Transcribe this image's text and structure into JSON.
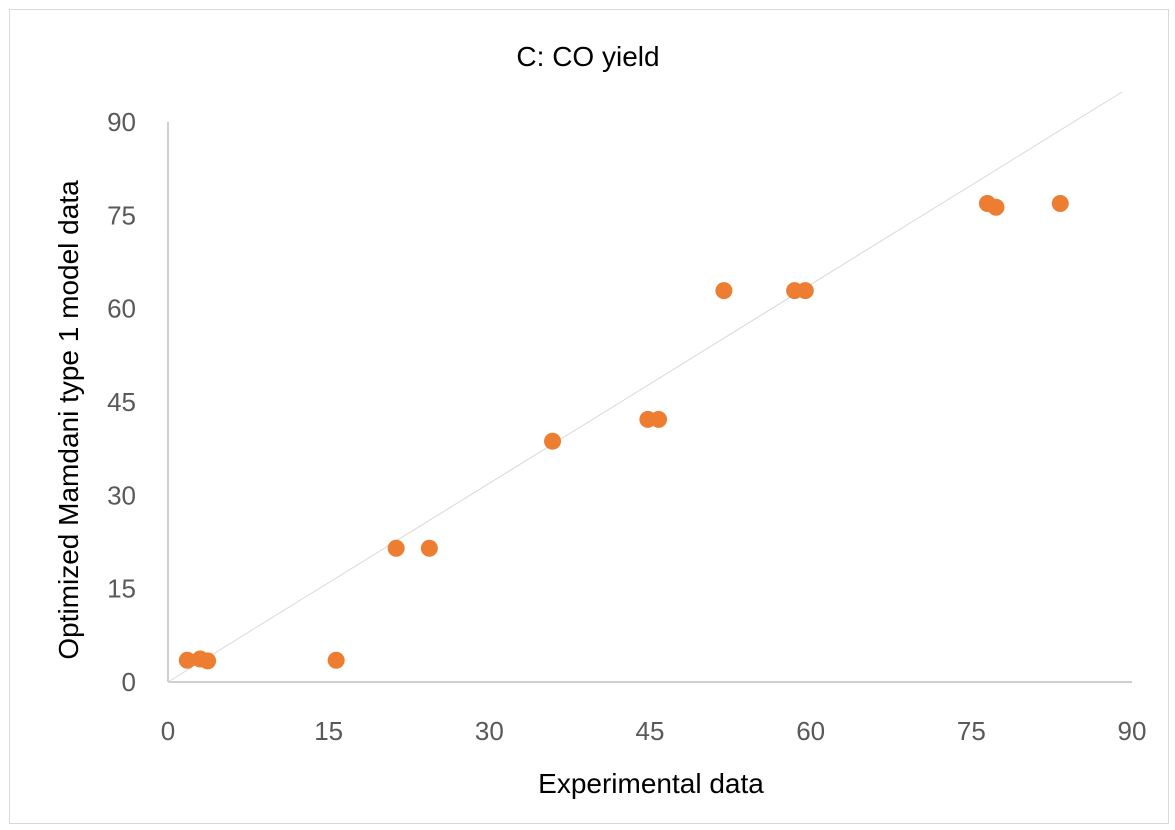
{
  "chart_data": {
    "type": "scatter",
    "title": "C: CO yield",
    "xlabel": "Experimental data",
    "ylabel": "Optimized Mamdani type 1 model data",
    "xlim": [
      0,
      90
    ],
    "ylim": [
      0,
      90
    ],
    "x_ticks": [
      "0",
      "15",
      "30",
      "45",
      "60",
      "75",
      "90"
    ],
    "y_ticks": [
      "0",
      "15",
      "30",
      "45",
      "60",
      "75",
      "90"
    ],
    "grid": false,
    "legend": "none",
    "reference_line": {
      "from": [
        0,
        0
      ],
      "to": [
        90,
        90
      ]
    },
    "series": [
      {
        "color": "#ed7d31",
        "points": [
          {
            "x": 1.8,
            "y": 3.5
          },
          {
            "x": 3.0,
            "y": 3.7
          },
          {
            "x": 3.7,
            "y": 3.4
          },
          {
            "x": 15.7,
            "y": 3.5
          },
          {
            "x": 21.3,
            "y": 21.5
          },
          {
            "x": 24.4,
            "y": 21.5
          },
          {
            "x": 35.9,
            "y": 38.7
          },
          {
            "x": 44.8,
            "y": 42.2
          },
          {
            "x": 45.8,
            "y": 42.2
          },
          {
            "x": 51.9,
            "y": 62.9
          },
          {
            "x": 58.5,
            "y": 62.9
          },
          {
            "x": 59.5,
            "y": 62.9
          },
          {
            "x": 76.5,
            "y": 76.9
          },
          {
            "x": 77.3,
            "y": 76.3
          },
          {
            "x": 83.3,
            "y": 76.9
          }
        ]
      }
    ]
  }
}
